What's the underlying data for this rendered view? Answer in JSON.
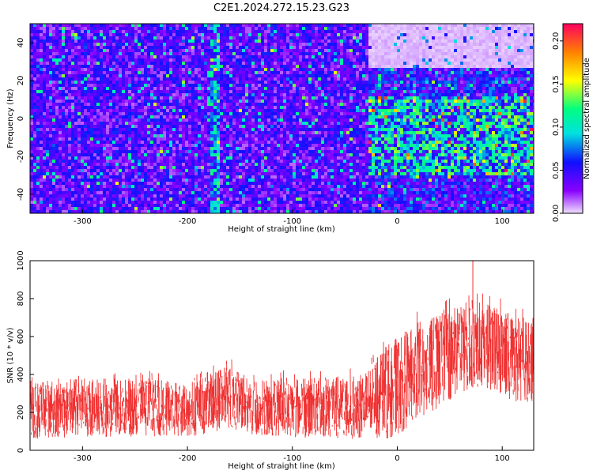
{
  "chart_data": [
    {
      "type": "heatmap",
      "title": "C2E1.2024.272.15.23.G23",
      "xlabel": "Height of straight line (km)",
      "ylabel": "Frequency (Hz)",
      "xlim": [
        -350,
        130
      ],
      "ylim": [
        -50,
        50
      ],
      "xticks": [
        -300,
        -200,
        -100,
        0,
        100
      ],
      "yticks": [
        -40,
        -20,
        0,
        20,
        40
      ],
      "colorbar": {
        "label": "Normalized spectral amplitude",
        "range": [
          0.0,
          0.22
        ],
        "ticks": [
          "0.00",
          "0.05",
          "0.10",
          "0.15",
          "0.20"
        ],
        "colormap": [
          "#f0e0ff",
          "#8800ff",
          "#1010ff",
          "#00e0e0",
          "#00ff80",
          "#ffff00",
          "#ff8000",
          "#ff0060"
        ]
      },
      "features": [
        {
          "region": "x -350 to -30, y -50 to 50",
          "level": 0.04
        },
        {
          "region": "x -30 to 130, y -30 to 12",
          "level": 0.09
        },
        {
          "region": "x -30 to 130, y 28 to 50",
          "level": 0.005
        },
        {
          "region": "x -180 to -170, y -50 to 50",
          "level": 0.08
        }
      ]
    },
    {
      "type": "area",
      "xlabel": "Height of straight line (km)",
      "ylabel": "SNR (10 * v/v)",
      "xlim": [
        -350,
        130
      ],
      "ylim": [
        0,
        1000
      ],
      "xticks": [
        -300,
        -200,
        -100,
        0,
        100
      ],
      "yticks": [
        0,
        200,
        400,
        600,
        800,
        1000
      ],
      "series_color": "#f03030",
      "envelope": {
        "x": [
          -350,
          -300,
          -250,
          -200,
          -175,
          -160,
          -140,
          -100,
          -60,
          -30,
          -10,
          0,
          20,
          50,
          70,
          90,
          110,
          130
        ],
        "upper": [
          360,
          380,
          380,
          360,
          420,
          450,
          380,
          380,
          390,
          420,
          560,
          600,
          680,
          740,
          800,
          760,
          720,
          700
        ],
        "lower": [
          60,
          70,
          70,
          70,
          90,
          120,
          80,
          70,
          60,
          60,
          60,
          80,
          150,
          260,
          330,
          320,
          260,
          250
        ]
      },
      "peak": {
        "x": 72,
        "y": 1000
      }
    }
  ]
}
